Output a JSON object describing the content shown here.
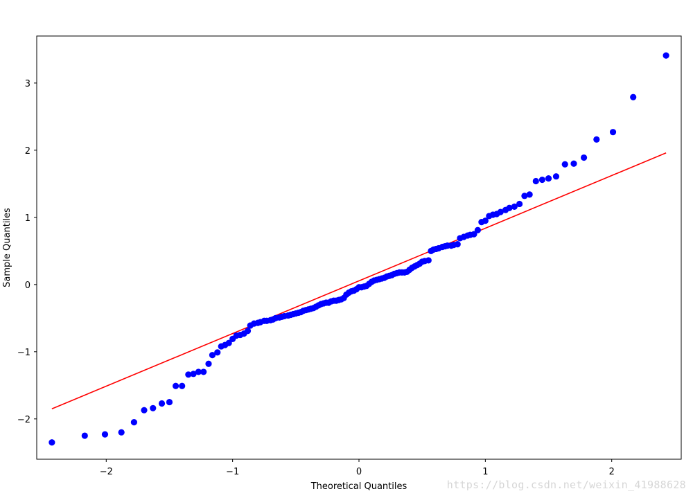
{
  "chart_data": {
    "type": "scatter",
    "title": "",
    "xlabel": "Theoretical Quantiles",
    "ylabel": "Sample Quantiles",
    "xlim": [
      -2.55,
      2.55
    ],
    "ylim": [
      -2.6,
      3.7
    ],
    "xticks": [
      -2,
      -1,
      0,
      1,
      2
    ],
    "yticks": [
      -2,
      -1,
      0,
      1,
      2,
      3
    ],
    "grid": false,
    "legend": "none",
    "colors": {
      "points": "#0000ff",
      "line": "#ff0000"
    },
    "reference_line": {
      "x": [
        -2.43,
        2.43
      ],
      "y": [
        -1.85,
        1.96
      ]
    },
    "points": [
      [
        -2.43,
        -2.35
      ],
      [
        -2.17,
        -2.25
      ],
      [
        -2.01,
        -2.23
      ],
      [
        -1.88,
        -2.2
      ],
      [
        -1.78,
        -2.05
      ],
      [
        -1.7,
        -1.87
      ],
      [
        -1.63,
        -1.84
      ],
      [
        -1.56,
        -1.77
      ],
      [
        -1.5,
        -1.75
      ],
      [
        -1.45,
        -1.51
      ],
      [
        -1.4,
        -1.51
      ],
      [
        -1.35,
        -1.34
      ],
      [
        -1.31,
        -1.33
      ],
      [
        -1.27,
        -1.3
      ],
      [
        -1.23,
        -1.3
      ],
      [
        -1.19,
        -1.18
      ],
      [
        -1.16,
        -1.05
      ],
      [
        -1.12,
        -1.01
      ],
      [
        -1.09,
        -0.92
      ],
      [
        -1.06,
        -0.9
      ],
      [
        -1.03,
        -0.87
      ],
      [
        -1.0,
        -0.81
      ],
      [
        -0.97,
        -0.76
      ],
      [
        -0.94,
        -0.75
      ],
      [
        -0.91,
        -0.73
      ],
      [
        -0.88,
        -0.69
      ],
      [
        -0.86,
        -0.61
      ],
      [
        -0.83,
        -0.58
      ],
      [
        -0.8,
        -0.57
      ],
      [
        -0.78,
        -0.56
      ],
      [
        -0.75,
        -0.54
      ],
      [
        -0.73,
        -0.54
      ],
      [
        -0.7,
        -0.53
      ],
      [
        -0.68,
        -0.52
      ],
      [
        -0.66,
        -0.5
      ],
      [
        -0.63,
        -0.49
      ],
      [
        -0.61,
        -0.48
      ],
      [
        -0.59,
        -0.47
      ],
      [
        -0.56,
        -0.46
      ],
      [
        -0.54,
        -0.45
      ],
      [
        -0.52,
        -0.44
      ],
      [
        -0.5,
        -0.43
      ],
      [
        -0.48,
        -0.42
      ],
      [
        -0.46,
        -0.41
      ],
      [
        -0.44,
        -0.39
      ],
      [
        -0.42,
        -0.38
      ],
      [
        -0.4,
        -0.37
      ],
      [
        -0.38,
        -0.36
      ],
      [
        -0.36,
        -0.35
      ],
      [
        -0.34,
        -0.33
      ],
      [
        -0.32,
        -0.31
      ],
      [
        -0.3,
        -0.29
      ],
      [
        -0.28,
        -0.28
      ],
      [
        -0.26,
        -0.27
      ],
      [
        -0.24,
        -0.27
      ],
      [
        -0.22,
        -0.25
      ],
      [
        -0.2,
        -0.24
      ],
      [
        -0.18,
        -0.24
      ],
      [
        -0.16,
        -0.23
      ],
      [
        -0.14,
        -0.22
      ],
      [
        -0.12,
        -0.2
      ],
      [
        -0.1,
        -0.15
      ],
      [
        -0.08,
        -0.12
      ],
      [
        -0.06,
        -0.1
      ],
      [
        -0.04,
        -0.09
      ],
      [
        -0.02,
        -0.07
      ],
      [
        0.0,
        -0.04
      ],
      [
        0.02,
        -0.04
      ],
      [
        0.04,
        -0.03
      ],
      [
        0.06,
        -0.02
      ],
      [
        0.08,
        0.01
      ],
      [
        0.1,
        0.04
      ],
      [
        0.12,
        0.06
      ],
      [
        0.14,
        0.07
      ],
      [
        0.16,
        0.08
      ],
      [
        0.18,
        0.09
      ],
      [
        0.2,
        0.1
      ],
      [
        0.22,
        0.12
      ],
      [
        0.24,
        0.13
      ],
      [
        0.26,
        0.14
      ],
      [
        0.28,
        0.16
      ],
      [
        0.3,
        0.17
      ],
      [
        0.32,
        0.18
      ],
      [
        0.34,
        0.18
      ],
      [
        0.36,
        0.18
      ],
      [
        0.38,
        0.19
      ],
      [
        0.4,
        0.22
      ],
      [
        0.42,
        0.25
      ],
      [
        0.44,
        0.27
      ],
      [
        0.46,
        0.29
      ],
      [
        0.48,
        0.31
      ],
      [
        0.5,
        0.34
      ],
      [
        0.52,
        0.35
      ],
      [
        0.55,
        0.36
      ],
      [
        0.57,
        0.5
      ],
      [
        0.59,
        0.52
      ],
      [
        0.61,
        0.53
      ],
      [
        0.63,
        0.54
      ],
      [
        0.66,
        0.56
      ],
      [
        0.68,
        0.57
      ],
      [
        0.7,
        0.58
      ],
      [
        0.73,
        0.58
      ],
      [
        0.75,
        0.59
      ],
      [
        0.78,
        0.6
      ],
      [
        0.8,
        0.69
      ],
      [
        0.83,
        0.71
      ],
      [
        0.86,
        0.73
      ],
      [
        0.88,
        0.74
      ],
      [
        0.91,
        0.75
      ],
      [
        0.94,
        0.81
      ],
      [
        0.97,
        0.93
      ],
      [
        1.0,
        0.95
      ],
      [
        1.03,
        1.02
      ],
      [
        1.06,
        1.04
      ],
      [
        1.09,
        1.05
      ],
      [
        1.12,
        1.08
      ],
      [
        1.16,
        1.11
      ],
      [
        1.19,
        1.14
      ],
      [
        1.23,
        1.16
      ],
      [
        1.27,
        1.2
      ],
      [
        1.31,
        1.32
      ],
      [
        1.35,
        1.34
      ],
      [
        1.4,
        1.54
      ],
      [
        1.45,
        1.56
      ],
      [
        1.5,
        1.58
      ],
      [
        1.56,
        1.61
      ],
      [
        1.63,
        1.79
      ],
      [
        1.7,
        1.8
      ],
      [
        1.78,
        1.89
      ],
      [
        1.88,
        2.16
      ],
      [
        2.01,
        2.27
      ],
      [
        2.17,
        2.79
      ],
      [
        2.43,
        3.41
      ]
    ]
  },
  "watermark": "https://blog.csdn.net/weixin_41988628"
}
